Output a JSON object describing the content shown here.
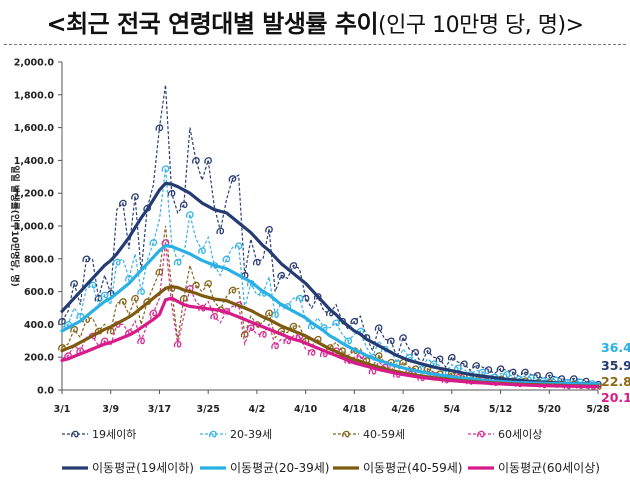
{
  "page": {
    "title_main": "<최근 전국 연령대별 발생률 추이",
    "title_sub": "(인구 10만명 당, 명)>"
  },
  "chart_data": {
    "type": "line",
    "title": "최근 전국 연령대별 발생률 추이 (인구 10만명 당, 명)",
    "ylabel": "일일 발생률(인구10만명당, 명)",
    "ylim": [
      0,
      2000
    ],
    "yticks": [
      0,
      200,
      400,
      600,
      800,
      1000,
      1200,
      1400,
      1600,
      1800,
      2000
    ],
    "ytick_labels": [
      "0.0",
      "200.0",
      "400.0",
      "600.0",
      "800.0",
      "1,000.0",
      "1,200.0",
      "1,400.0",
      "1,600.0",
      "1,800.0",
      "2,000.0"
    ],
    "xlim": [
      0,
      88
    ],
    "xticks": [
      0,
      8,
      16,
      24,
      32,
      40,
      48,
      56,
      64,
      72,
      80,
      88
    ],
    "xtick_labels": [
      "3/1",
      "3/9",
      "3/17",
      "3/25",
      "4/2",
      "4/10",
      "4/18",
      "4/26",
      "5/4",
      "5/12",
      "5/20",
      "5/28"
    ],
    "grid": false,
    "legend": "bottom",
    "series": [
      {
        "name": "19세이하",
        "style": "dashed-marker",
        "color": "#2c3f73",
        "values": [
          420,
          480,
          650,
          520,
          800,
          800,
          560,
          700,
          590,
          1100,
          1140,
          860,
          1180,
          720,
          1110,
          1250,
          1600,
          1860,
          1200,
          1080,
          1130,
          1600,
          1400,
          1280,
          1400,
          1120,
          970,
          1160,
          1290,
          1310,
          700,
          920,
          780,
          800,
          980,
          600,
          700,
          680,
          760,
          740,
          560,
          500,
          570,
          480,
          470,
          520,
          420,
          370,
          420,
          450,
          320,
          240,
          380,
          310,
          300,
          200,
          320,
          250,
          230,
          160,
          240,
          200,
          190,
          140,
          200,
          170,
          160,
          120,
          150,
          140,
          125,
          100,
          130,
          120,
          110,
          85,
          110,
          95,
          90,
          70,
          90,
          80,
          70,
          60,
          70,
          65,
          55,
          45,
          35.9
        ]
      },
      {
        "name": "20-39세",
        "style": "dashed-marker",
        "color": "#38b4e6",
        "values": [
          380,
          400,
          500,
          450,
          620,
          640,
          520,
          580,
          520,
          780,
          800,
          680,
          830,
          600,
          790,
          900,
          1040,
          1350,
          900,
          780,
          820,
          1070,
          920,
          850,
          930,
          760,
          700,
          800,
          870,
          880,
          500,
          650,
          580,
          590,
          690,
          460,
          530,
          510,
          560,
          560,
          430,
          390,
          440,
          380,
          380,
          410,
          340,
          300,
          340,
          360,
          260,
          200,
          300,
          250,
          240,
          165,
          250,
          200,
          185,
          130,
          190,
          160,
          150,
          110,
          155,
          135,
          125,
          95,
          120,
          110,
          100,
          80,
          100,
          95,
          85,
          68,
          85,
          75,
          70,
          58,
          70,
          62,
          55,
          48,
          55,
          50,
          44,
          40,
          36.4
        ]
      },
      {
        "name": "40-59세",
        "style": "dashed-marker",
        "color": "#85661b",
        "values": [
          260,
          280,
          370,
          320,
          430,
          440,
          360,
          400,
          360,
          530,
          540,
          460,
          560,
          400,
          540,
          630,
          720,
          1000,
          620,
          300,
          560,
          760,
          640,
          600,
          650,
          540,
          490,
          570,
          610,
          620,
          340,
          450,
          400,
          410,
          470,
          320,
          360,
          350,
          390,
          390,
          300,
          270,
          310,
          260,
          260,
          290,
          240,
          210,
          240,
          250,
          180,
          140,
          210,
          170,
          170,
          110,
          170,
          140,
          130,
          90,
          130,
          110,
          100,
          75,
          105,
          95,
          85,
          65,
          80,
          75,
          68,
          55,
          68,
          62,
          57,
          46,
          57,
          50,
          46,
          38,
          46,
          41,
          36,
          32,
          36,
          33,
          29,
          26,
          22.8
        ]
      },
      {
        "name": "60세이상",
        "style": "dashed-marker",
        "color": "#d63092",
        "values": [
          190,
          210,
          270,
          240,
          320,
          330,
          270,
          300,
          270,
          400,
          400,
          350,
          420,
          300,
          400,
          470,
          560,
          900,
          520,
          280,
          450,
          620,
          540,
          500,
          540,
          450,
          410,
          480,
          510,
          520,
          280,
          380,
          340,
          340,
          400,
          270,
          310,
          300,
          330,
          330,
          250,
          230,
          260,
          220,
          220,
          240,
          200,
          180,
          200,
          210,
          150,
          115,
          170,
          140,
          140,
          95,
          140,
          115,
          105,
          75,
          110,
          90,
          85,
          62,
          85,
          78,
          70,
          53,
          66,
          62,
          56,
          45,
          56,
          51,
          47,
          38,
          47,
          42,
          38,
          32,
          38,
          34,
          30,
          26,
          30,
          27,
          24,
          22,
          20.1
        ]
      },
      {
        "name": "이동평균(19세이하)",
        "style": "solid",
        "color": "#253c73",
        "values": [
          480,
          520,
          560,
          600,
          640,
          680,
          720,
          760,
          790,
          830,
          880,
          930,
          990,
          1050,
          1100,
          1160,
          1220,
          1260,
          1255,
          1240,
          1220,
          1200,
          1170,
          1140,
          1120,
          1100,
          1090,
          1080,
          1050,
          1020,
          990,
          960,
          920,
          880,
          850,
          810,
          770,
          740,
          710,
          680,
          650,
          610,
          570,
          530,
          490,
          460,
          420,
          390,
          360,
          340,
          310,
          290,
          270,
          250,
          230,
          210,
          195,
          180,
          170,
          160,
          150,
          140,
          132,
          125,
          118,
          110,
          102,
          95,
          90,
          85,
          80,
          75,
          70,
          66,
          62,
          59,
          56,
          53,
          50,
          48,
          46,
          44,
          42,
          40,
          39,
          38,
          37,
          36.5,
          35.9
        ]
      },
      {
        "name": "이동평균(20-39세)",
        "style": "solid",
        "color": "#2ab0e4",
        "values": [
          360,
          380,
          400,
          420,
          450,
          480,
          510,
          540,
          560,
          590,
          620,
          650,
          690,
          730,
          770,
          810,
          850,
          880,
          875,
          860,
          845,
          830,
          810,
          790,
          775,
          760,
          750,
          740,
          720,
          700,
          680,
          660,
          630,
          600,
          580,
          550,
          520,
          500,
          480,
          460,
          440,
          410,
          385,
          360,
          330,
          310,
          285,
          265,
          245,
          230,
          210,
          195,
          180,
          170,
          155,
          145,
          135,
          125,
          118,
          110,
          103,
          97,
          91,
          86,
          81,
          76,
          72,
          68,
          64,
          60,
          57,
          54,
          51,
          49,
          47,
          45,
          44,
          43,
          42,
          41,
          40,
          39.5,
          39,
          38.5,
          38,
          37.5,
          37,
          36.7,
          36.4
        ]
      },
      {
        "name": "이동평균(40-59세)",
        "style": "solid",
        "color": "#7d5a10",
        "values": [
          240,
          255,
          270,
          290,
          310,
          330,
          350,
          370,
          385,
          405,
          425,
          445,
          470,
          500,
          530,
          560,
          590,
          620,
          630,
          625,
          610,
          600,
          590,
          575,
          565,
          555,
          550,
          545,
          530,
          515,
          500,
          485,
          465,
          445,
          430,
          410,
          390,
          375,
          360,
          345,
          330,
          310,
          290,
          270,
          250,
          235,
          215,
          200,
          185,
          175,
          160,
          150,
          140,
          130,
          120,
          112,
          104,
          97,
          91,
          85,
          80,
          75,
          71,
          67,
          63,
          59,
          56,
          53,
          50,
          47,
          45,
          43,
          41,
          39,
          37,
          35.5,
          34,
          33,
          32,
          31,
          30,
          29,
          28,
          27,
          26,
          25,
          24,
          23.5,
          22.8
        ]
      },
      {
        "name": "이동평균(60세이상)",
        "style": "solid",
        "color": "#d81b8a",
        "values": [
          180,
          190,
          205,
          220,
          235,
          250,
          265,
          280,
          290,
          305,
          320,
          335,
          355,
          380,
          405,
          430,
          460,
          550,
          560,
          540,
          520,
          510,
          505,
          500,
          495,
          490,
          485,
          475,
          460,
          445,
          430,
          415,
          400,
          385,
          370,
          355,
          340,
          325,
          310,
          300,
          285,
          270,
          255,
          240,
          225,
          210,
          195,
          180,
          165,
          155,
          145,
          135,
          125,
          117,
          109,
          101,
          94,
          88,
          82,
          77,
          72,
          68,
          64,
          60,
          57,
          54,
          51,
          48,
          45,
          43,
          41,
          39,
          37,
          35,
          33,
          31.5,
          30,
          29,
          28,
          27,
          26,
          25,
          24,
          23.5,
          23,
          22,
          21.5,
          21,
          20.1
        ]
      }
    ],
    "end_labels": [
      {
        "series": "이동평균(20-39세)",
        "text": "36.4",
        "color": "#2ab0e4"
      },
      {
        "series": "이동평균(19세이하)",
        "text": "35.9",
        "color": "#253c73"
      },
      {
        "series": "이동평균(40-59세)",
        "text": "22.8",
        "color": "#8c6914"
      },
      {
        "series": "이동평균(60세이상)",
        "text": "20.1",
        "color": "#d81b8a"
      }
    ]
  }
}
